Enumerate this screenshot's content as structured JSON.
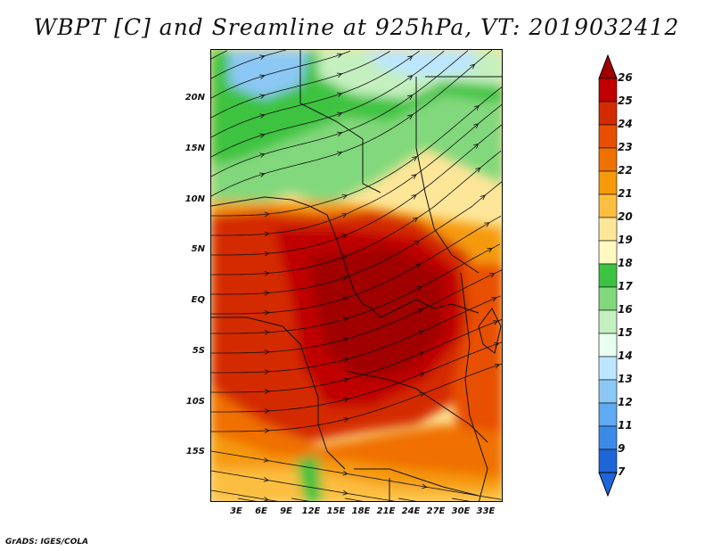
{
  "title": "WBPT [C] and Sreamline at 925hPa, VT: 2019032412",
  "credit": "GrADS: IGES/COLA",
  "map": {
    "variable": "Wet-bulb potential temperature",
    "units": "C",
    "level": "925hPa",
    "valid_time": "2019032412",
    "lon_range": [
      0,
      35
    ],
    "lat_range": [
      -20,
      25
    ],
    "lat_ticks": [
      "20N",
      "15N",
      "10N",
      "5N",
      "EQ",
      "5S",
      "10S",
      "15S"
    ],
    "lat_values": [
      20,
      15,
      10,
      5,
      0,
      -5,
      -10,
      -15
    ],
    "lon_ticks": [
      "3E",
      "6E",
      "9E",
      "12E",
      "15E",
      "18E",
      "21E",
      "24E",
      "27E",
      "30E",
      "33E"
    ],
    "lon_values": [
      3,
      6,
      9,
      12,
      15,
      18,
      21,
      24,
      27,
      30,
      33
    ]
  },
  "colorbar": {
    "levels": [
      "26",
      "25",
      "24",
      "23",
      "22",
      "21",
      "20",
      "19",
      "18",
      "17",
      "16",
      "15",
      "14",
      "13",
      "12",
      "11",
      "9",
      "7"
    ],
    "colors": [
      "#a00000",
      "#c00000",
      "#d42a00",
      "#e85000",
      "#f07000",
      "#f59a0a",
      "#fcbe40",
      "#fee699",
      "#fff8c0",
      "#3cc341",
      "#82d87c",
      "#c4f0bf",
      "#e8fff0",
      "#bce6ff",
      "#8cc8f5",
      "#5faaf0",
      "#3c8ae8",
      "#1e66d8",
      "#1e66d8"
    ]
  }
}
